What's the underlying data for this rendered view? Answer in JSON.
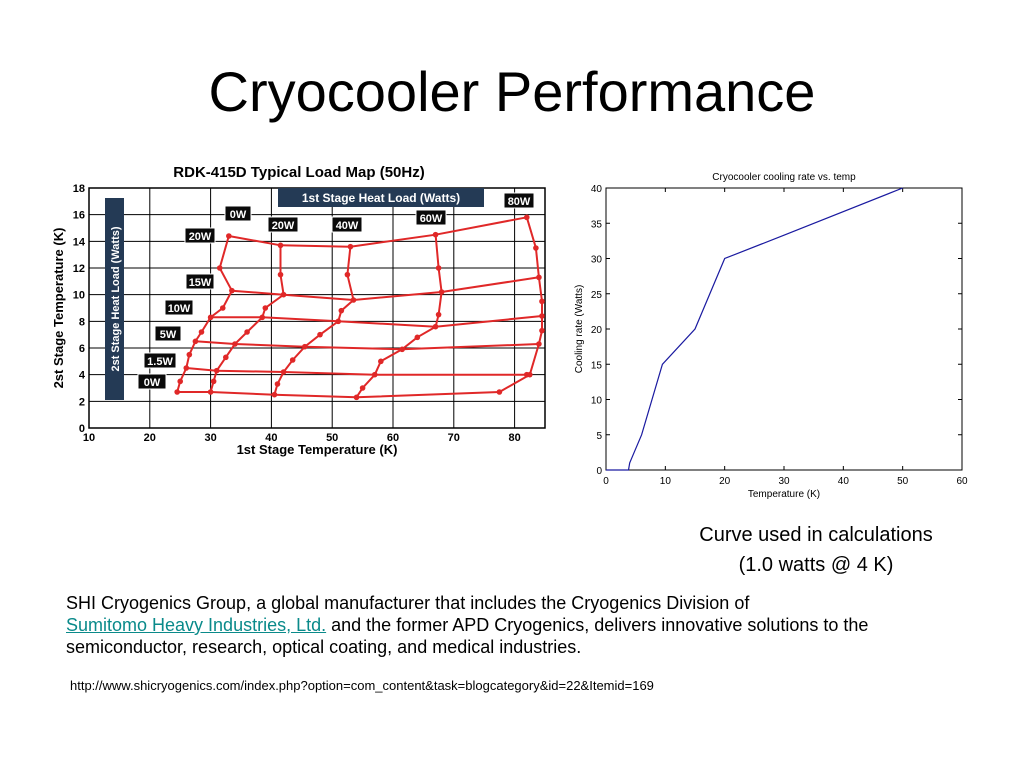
{
  "slide": {
    "title": "Cryocooler Performance",
    "caption_line1": "Curve used in calculations",
    "caption_line2": "(1.0 watts @ 4 K)",
    "desc_before": "SHI Cryogenics Group, a global manufacturer that includes the Cryogenics Division of",
    "desc_link": "Sumitomo Heavy Industries, Ltd.",
    "desc_after": "and the former APD Cryogenics, delivers innovative solutions to the semiconductor, research, optical coating, and medical industries.",
    "url": "http://www.shicryogenics.com/index.php?option=com_content&task=blogcategory&id=22&Itemid=169",
    "link_color": "#0a8a8a"
  },
  "chart_data": [
    {
      "type": "line",
      "title": "RDK-415D Typical Load Map (50Hz)",
      "xlabel": "1st Stage Temperature (K)",
      "ylabel": "2st Stage Temperature (K)",
      "xlim": [
        10,
        85
      ],
      "ylim": [
        0,
        18
      ],
      "xticks": [
        10,
        20,
        30,
        40,
        50,
        60,
        70,
        80
      ],
      "yticks": [
        0,
        2,
        4,
        6,
        8,
        10,
        12,
        14,
        16,
        18
      ],
      "grid": true,
      "legend": "none",
      "first_stage_heat_load_title": "1st Stage Heat Load (Watts)",
      "second_stage_heat_load_title": "2st Stage Heat Load (Watts)",
      "line_color": "#e02828",
      "first_stage_labels": [
        "0W",
        "20W",
        "40W",
        "60W",
        "80W"
      ],
      "second_stage_labels": [
        "0W",
        "1.5W",
        "5W",
        "10W",
        "15W",
        "20W"
      ],
      "series": [
        {
          "name": "0W",
          "points": [
            [
              24.5,
              2.7
            ],
            [
              30,
              2.7
            ],
            [
              40.5,
              2.5
            ],
            [
              54,
              2.3
            ],
            [
              77.5,
              2.7
            ],
            [
              82.5,
              4.0
            ],
            [
              84,
              6.3
            ]
          ]
        },
        {
          "name": "1.5W",
          "points": [
            [
              26,
              4.5
            ],
            [
              31,
              4.3
            ],
            [
              42,
              4.2
            ],
            [
              57,
              4.0
            ],
            [
              82,
              4.0
            ]
          ]
        },
        {
          "name": "5W",
          "points": [
            [
              27.5,
              6.5
            ],
            [
              34,
              6.3
            ],
            [
              45.5,
              6.1
            ],
            [
              61.5,
              5.9
            ],
            [
              84,
              6.3
            ]
          ]
        },
        {
          "name": "10W",
          "points": [
            [
              30,
              8.3
            ],
            [
              38.5,
              8.3
            ],
            [
              51,
              8.0
            ],
            [
              67,
              7.6
            ],
            [
              84.5,
              8.4
            ]
          ]
        },
        {
          "name": "15W",
          "points": [
            [
              33.5,
              10.3
            ],
            [
              42,
              10.0
            ],
            [
              53.5,
              9.6
            ],
            [
              68,
              10.2
            ],
            [
              84,
              11.3
            ]
          ]
        },
        {
          "name": "0W",
          "points": [
            [
              33,
              14.4
            ],
            [
              31.5,
              12.0
            ],
            [
              33.5,
              10.3
            ],
            [
              32,
              9.0
            ],
            [
              30,
              8.3
            ],
            [
              28.5,
              7.2
            ],
            [
              27.5,
              6.5
            ],
            [
              26.5,
              5.5
            ],
            [
              26,
              4.5
            ],
            [
              25,
              3.5
            ],
            [
              24.5,
              2.7
            ]
          ]
        },
        {
          "name": "20W",
          "points": [
            [
              41.5,
              13.7
            ],
            [
              41.5,
              11.5
            ],
            [
              42,
              10.0
            ],
            [
              39,
              9.0
            ],
            [
              38.5,
              8.3
            ],
            [
              36,
              7.2
            ],
            [
              34,
              6.3
            ],
            [
              32.5,
              5.3
            ],
            [
              31,
              4.3
            ],
            [
              30.5,
              3.5
            ],
            [
              30,
              2.7
            ]
          ]
        },
        {
          "name": "40W",
          "points": [
            [
              53,
              13.6
            ],
            [
              52.5,
              11.5
            ],
            [
              53.5,
              9.6
            ],
            [
              51.5,
              8.8
            ],
            [
              51,
              8.0
            ],
            [
              48,
              7.0
            ],
            [
              45.5,
              6.1
            ],
            [
              43.5,
              5.1
            ],
            [
              42,
              4.2
            ],
            [
              41,
              3.3
            ],
            [
              40.5,
              2.5
            ]
          ]
        },
        {
          "name": "60W",
          "points": [
            [
              67,
              14.5
            ],
            [
              67.5,
              12.0
            ],
            [
              68,
              10.2
            ],
            [
              67.5,
              8.5
            ],
            [
              67,
              7.6
            ],
            [
              64,
              6.8
            ],
            [
              61.5,
              5.9
            ],
            [
              58,
              5.0
            ],
            [
              57,
              4.0
            ],
            [
              55,
              3.0
            ],
            [
              54,
              2.3
            ]
          ]
        },
        {
          "name": "80W",
          "points": [
            [
              82,
              15.8
            ],
            [
              83.5,
              13.5
            ],
            [
              84,
              11.3
            ],
            [
              84.5,
              9.5
            ],
            [
              84.5,
              8.4
            ],
            [
              84.5,
              7.3
            ],
            [
              84,
              6.3
            ]
          ]
        },
        {
          "name": "",
          "points": [
            [
              33,
              14.4
            ],
            [
              41.5,
              13.7
            ],
            [
              53,
              13.6
            ],
            [
              67,
              14.5
            ],
            [
              82,
              15.8
            ]
          ]
        }
      ]
    },
    {
      "type": "line",
      "title": "Cryocooler cooling rate vs. temp",
      "xlabel": "Temperature (K)",
      "ylabel": "Cooling rate (Watts)",
      "xlim": [
        0,
        60
      ],
      "ylim": [
        0,
        40
      ],
      "xticks": [
        0,
        10,
        20,
        30,
        40,
        50,
        60
      ],
      "yticks": [
        0,
        5,
        10,
        15,
        20,
        25,
        30,
        35,
        40
      ],
      "grid": false,
      "legend": "none",
      "line_color": "#1a1aa0",
      "x": [
        0,
        3.8,
        4,
        6,
        9.5,
        15,
        20,
        30,
        50
      ],
      "y": [
        0,
        0,
        1,
        5,
        15,
        20,
        30,
        33.3,
        40
      ]
    }
  ]
}
